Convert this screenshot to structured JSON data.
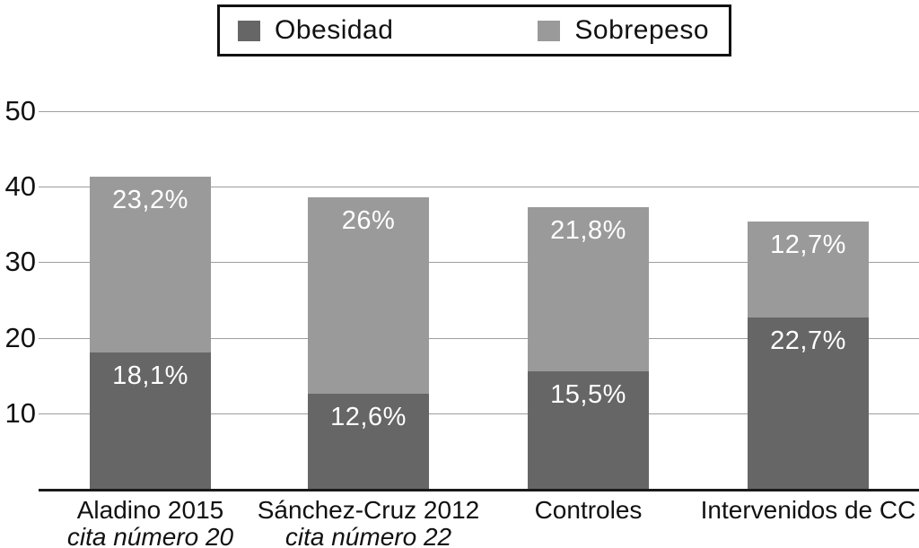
{
  "legend": {
    "items": [
      {
        "label": "Obesidad",
        "color": "#666666"
      },
      {
        "label": "Sobrepeso",
        "color": "#9a9a9a"
      }
    ]
  },
  "chart_data": {
    "type": "bar",
    "stacked": true,
    "title": "",
    "xlabel": "",
    "ylabel": "",
    "categories": [
      "Aladino 2015",
      "Sánchez-Cruz 2012",
      "Controles",
      "Intervenidos de CC"
    ],
    "category_subtitles": [
      "cita número 20",
      "cita número 22",
      "",
      ""
    ],
    "series": [
      {
        "name": "Obesidad",
        "color": "#666666",
        "values": [
          18.1,
          12.6,
          15.5,
          22.7
        ],
        "labels": [
          "18,1%",
          "12,6%",
          "15,5%",
          "22,7%"
        ]
      },
      {
        "name": "Sobrepeso",
        "color": "#9a9a9a",
        "values": [
          23.2,
          26.0,
          21.8,
          12.7
        ],
        "labels": [
          "23,2%",
          "26%",
          "21,8%",
          "12,7%"
        ]
      }
    ],
    "totals": [
      41.3,
      38.6,
      37.3,
      35.4
    ],
    "ylim": [
      0,
      50
    ],
    "yticks": [
      10,
      20,
      30,
      40,
      50
    ],
    "grid": true,
    "legend_position": "top",
    "value_label_color": "#ffffff"
  }
}
